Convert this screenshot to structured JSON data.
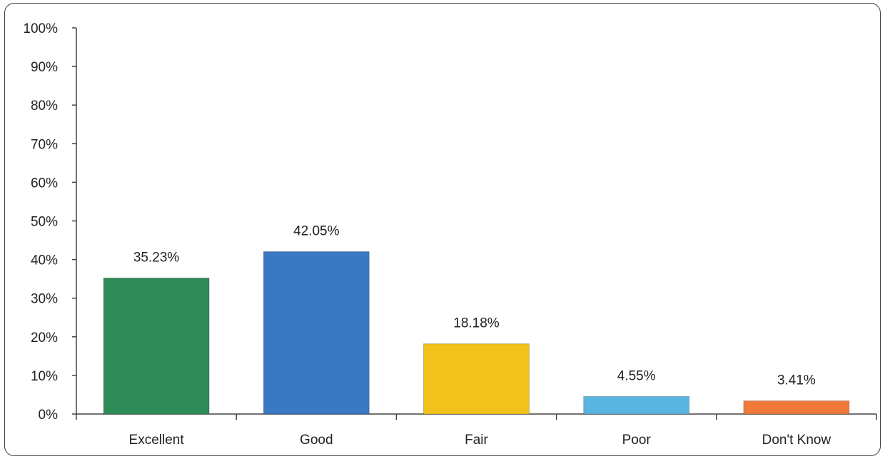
{
  "chart_data": {
    "type": "bar",
    "title": "",
    "xlabel": "",
    "ylabel": "",
    "categories": [
      "Excellent",
      "Good",
      "Fair",
      "Poor",
      "Don't Know"
    ],
    "values": [
      35.23,
      42.05,
      18.18,
      4.55,
      3.41
    ],
    "data_labels": [
      "35.23%",
      "42.05%",
      "18.18%",
      "4.55%",
      "3.41%"
    ],
    "ylim": [
      0,
      100
    ],
    "yticks": [
      0,
      10,
      20,
      30,
      40,
      50,
      60,
      70,
      80,
      90,
      100
    ],
    "ytick_labels": [
      "0%",
      "10%",
      "20%",
      "30%",
      "40%",
      "50%",
      "60%",
      "70%",
      "80%",
      "90%",
      "100%"
    ],
    "grid": false,
    "legend": "none",
    "colors": [
      "#2e8b57",
      "#3a78c4",
      "#f2c21b",
      "#5ab4e0",
      "#f07a3a"
    ]
  }
}
